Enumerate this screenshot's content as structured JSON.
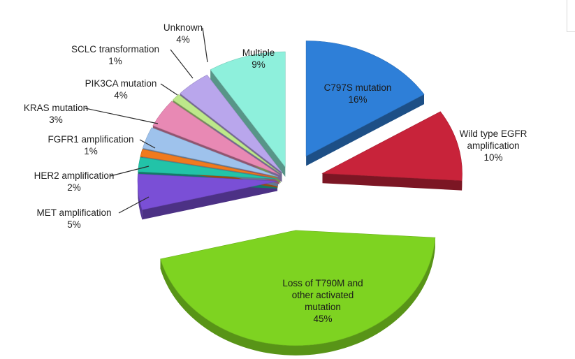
{
  "chart_data": {
    "type": "pie",
    "variant": "3d-exploded",
    "slices": [
      {
        "label": "C797S mutation",
        "value": 16,
        "value_label": "16%",
        "color": "#2e7fd8",
        "label_inside": true
      },
      {
        "label": "Wild type EGFR amplification",
        "value": 10,
        "value_label": "10%",
        "color": "#c8233a",
        "label_inside": false
      },
      {
        "label": "Loss of T790M and other activated mutation",
        "value": 45,
        "value_label": "45%",
        "color": "#7ed321",
        "label_inside": true
      },
      {
        "label": "MET amplification",
        "value": 5,
        "value_label": "5%",
        "color": "#7a4fd6",
        "label_inside": false
      },
      {
        "label": "HER2 amplification",
        "value": 2,
        "value_label": "2%",
        "color": "#22c3a8",
        "label_inside": false
      },
      {
        "label": "FGFR1 amplification",
        "value": 1,
        "value_label": "1%",
        "color": "#f07a1e",
        "label_inside": false
      },
      {
        "label": "KRAS mutation",
        "value": 3,
        "value_label": "3%",
        "color": "#9ec2ec",
        "label_inside": false
      },
      {
        "label": "PIK3CA mutation",
        "value": 4,
        "value_label": "4%",
        "color": "#e889b4",
        "label_inside": false
      },
      {
        "label": "SCLC transformation",
        "value": 1,
        "value_label": "1%",
        "color": "#bde88a",
        "label_inside": false
      },
      {
        "label": "Unknown",
        "value": 4,
        "value_label": "4%",
        "color": "#b9a6ec",
        "label_inside": false
      },
      {
        "label": "Multiple",
        "value": 9,
        "value_label": "9%",
        "color": "#8ef0dc",
        "label_inside": true
      }
    ]
  }
}
